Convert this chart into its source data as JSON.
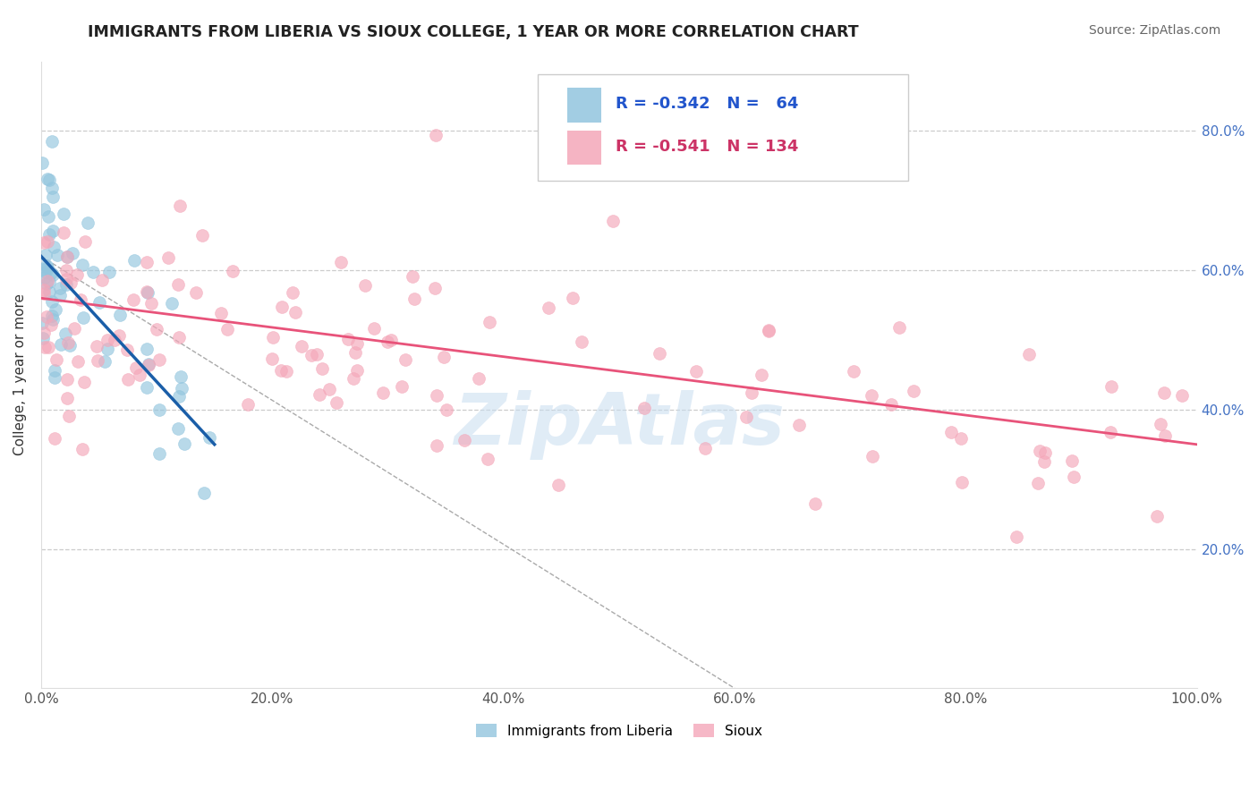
{
  "title": "IMMIGRANTS FROM LIBERIA VS SIOUX COLLEGE, 1 YEAR OR MORE CORRELATION CHART",
  "source_text": "Source: ZipAtlas.com",
  "ylabel": "College, 1 year or more",
  "xlim": [
    0.0,
    100.0
  ],
  "ylim": [
    0.0,
    90.0
  ],
  "xtick_values": [
    0,
    20,
    40,
    60,
    80,
    100
  ],
  "ytick_values": [
    20,
    40,
    60,
    80
  ],
  "legend_labels": [
    "Immigrants from Liberia",
    "Sioux"
  ],
  "R_blue": -0.342,
  "N_blue": 64,
  "R_pink": -0.541,
  "N_pink": 134,
  "blue_color": "#92c5de",
  "pink_color": "#f4a7b9",
  "blue_line_color": "#1a5ea8",
  "pink_line_color": "#e8537a",
  "watermark": "ZipAtlas",
  "background_color": "#ffffff",
  "grid_color": "#cccccc",
  "blue_trend_x0": 0.0,
  "blue_trend_y0": 62.0,
  "blue_trend_x1": 15.0,
  "blue_trend_y1": 35.0,
  "pink_trend_x0": 0.0,
  "pink_trend_y0": 56.0,
  "pink_trend_x1": 100.0,
  "pink_trend_y1": 35.0,
  "gray_dash_x0": 0.0,
  "gray_dash_y0": 62.0,
  "gray_dash_x1": 60.0,
  "gray_dash_y1": 0.0
}
